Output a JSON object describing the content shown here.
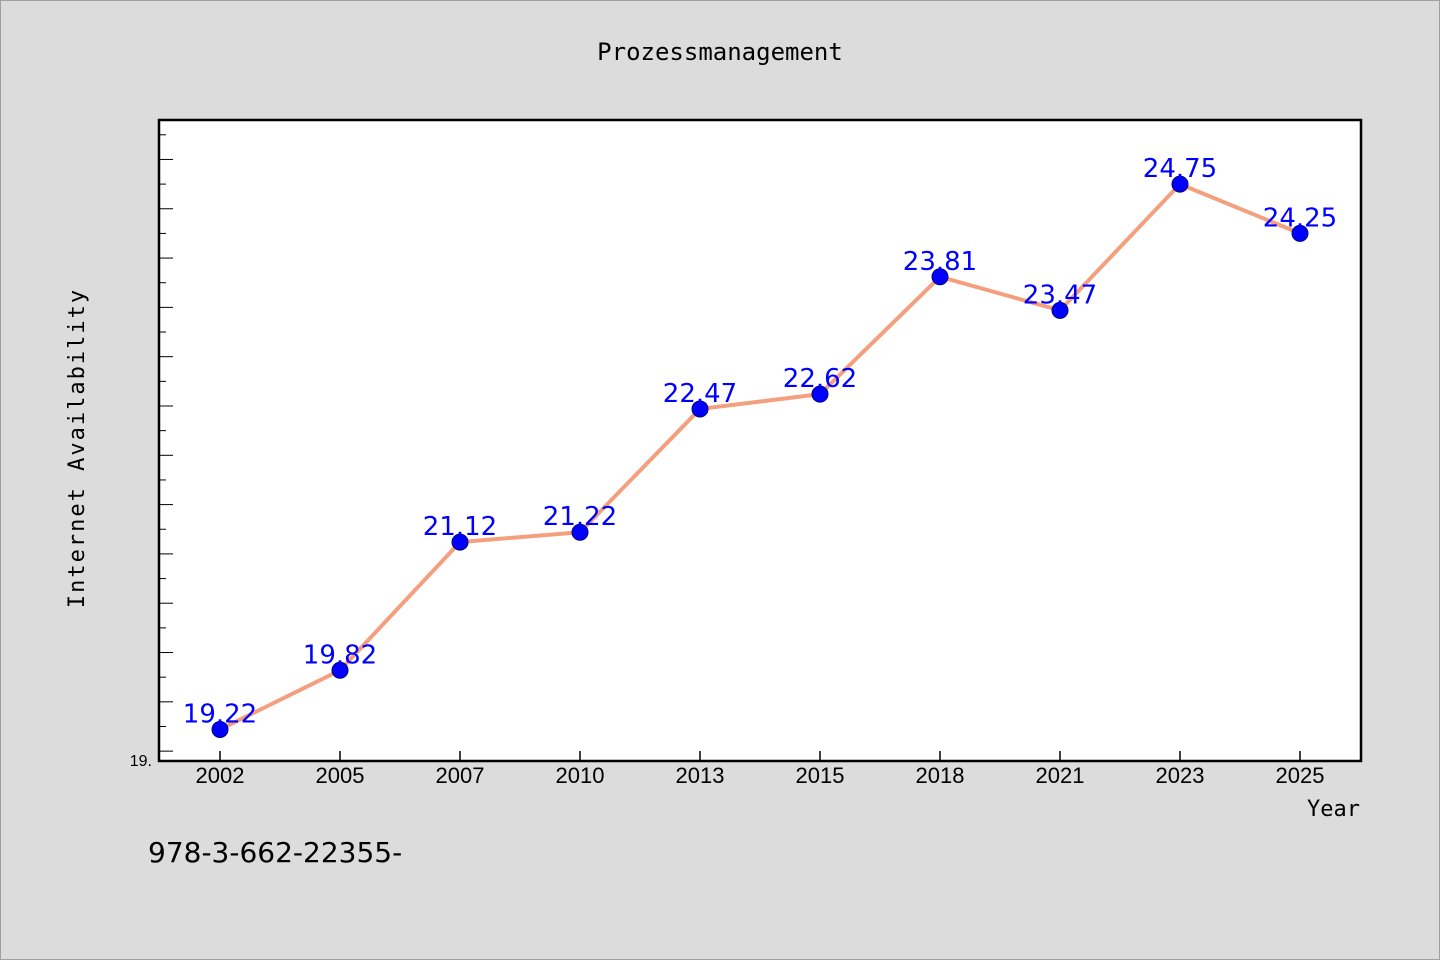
{
  "chart_data": {
    "type": "line",
    "title": "Prozessmanagement",
    "xlabel": "Year",
    "ylabel": "Internet Availability",
    "categories": [
      "2002",
      "2005",
      "2007",
      "2010",
      "2013",
      "2015",
      "2018",
      "2021",
      "2023",
      "2025"
    ],
    "series": [
      {
        "values": [
          19.22,
          19.82,
          21.12,
          21.22,
          22.47,
          22.62,
          23.81,
          23.47,
          24.75,
          24.25
        ],
        "line_color": "#f4a07e",
        "marker_color": "#0000ff"
      }
    ],
    "data_labels": [
      "19.22",
      "19.82",
      "21.12",
      "21.22",
      "22.47",
      "22.62",
      "23.81",
      "23.47",
      "24.75",
      "24.25"
    ],
    "ylim": [
      18.9,
      25.4
    ],
    "y_tick_label": "19.",
    "grid": false,
    "legend": "none",
    "label_color": "#0000ff"
  },
  "footer": {
    "text": "978-3-662-22355-"
  }
}
